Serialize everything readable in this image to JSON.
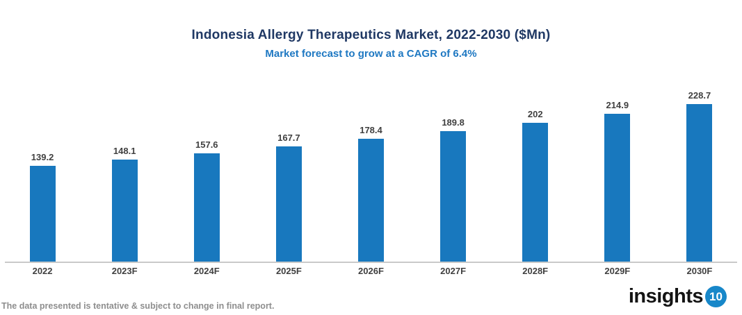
{
  "header": {
    "title": "Indonesia Allergy Therapeutics Market, 2022-2030 ($Mn)",
    "subtitle": "Market forecast to grow at a CAGR of 6.4%"
  },
  "chart_data": {
    "type": "bar",
    "title": "Indonesia Allergy Therapeutics Market, 2022-2030 ($Mn)",
    "subtitle": "Market forecast to grow at a CAGR of 6.4%",
    "categories": [
      "2022",
      "2023F",
      "2024F",
      "2025F",
      "2026F",
      "2027F",
      "2028F",
      "2029F",
      "2030F"
    ],
    "values": [
      139.2,
      148.1,
      157.6,
      167.7,
      178.4,
      189.8,
      202,
      214.9,
      228.7
    ],
    "data_labels": [
      "139.2",
      "148.1",
      "157.6",
      "167.7",
      "178.4",
      "189.8",
      "202",
      "214.9",
      "228.7"
    ],
    "xlabel": "",
    "ylabel": "",
    "ylim": [
      0,
      250
    ],
    "grid": false,
    "legend": "none",
    "bar_color": "#1878BE",
    "data_label_position": "above-bar"
  },
  "footer": {
    "note": "The data presented is tentative & subject to change in final report.",
    "logo_text": "insights",
    "logo_badge": "10"
  },
  "colors": {
    "title_color": "#1F3864",
    "subtitle_color": "#1E78C2",
    "bar_color": "#1878BE",
    "axis_line_color": "#C9C9C9",
    "value_label_color": "#404040",
    "tick_label_color": "#404040",
    "note_color": "#8E8E8E",
    "logo_text_color": "#141414",
    "logo_badge_color": "#1787C9"
  }
}
